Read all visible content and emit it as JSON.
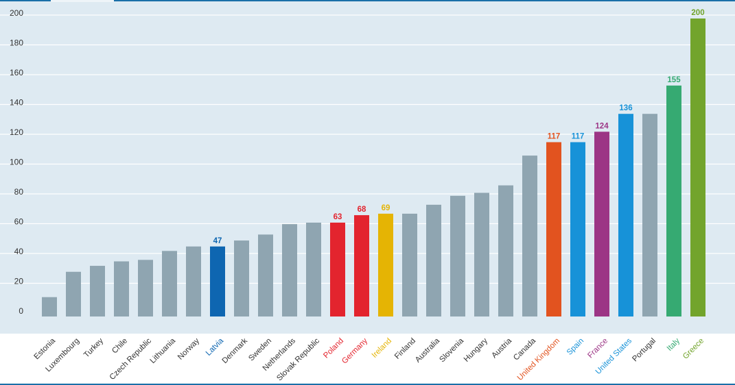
{
  "chart_data": {
    "type": "bar",
    "title": "",
    "xlabel": "",
    "ylabel": "",
    "ylim": [
      0,
      200
    ],
    "yticks": [
      0,
      20,
      40,
      60,
      80,
      100,
      120,
      140,
      160,
      180,
      200
    ],
    "yticks_labels": [
      "0",
      "20",
      "40",
      "60",
      "80",
      "100",
      "120",
      "140",
      "160",
      "180",
      "200"
    ],
    "grid": true,
    "categories": [
      "Estonia",
      "Luxembourg",
      "Turkey",
      "Chile",
      "Czech Republic",
      "Lithuania",
      "Norway",
      "Latvia",
      "Denmark",
      "Sweden",
      "Netherlands",
      "Slovak Republic",
      "Poland",
      "Germany",
      "Ireland",
      "Finland",
      "Australia",
      "Slovenia",
      "Hungary",
      "Austria",
      "Canada",
      "United Kingdom",
      "Spain",
      "France",
      "United States",
      "Portugal",
      "Italy",
      "Greece"
    ],
    "values": [
      13,
      30,
      34,
      37,
      38,
      44,
      47,
      47,
      51,
      55,
      62,
      63,
      63,
      68,
      69,
      69,
      75,
      81,
      83,
      88,
      108,
      117,
      117,
      124,
      136,
      136,
      155,
      200
    ],
    "data_labels": [
      "",
      "",
      "",
      "",
      "",
      "",
      "",
      "47",
      "",
      "",
      "",
      "",
      "63",
      "68",
      "69",
      "",
      "",
      "",
      "",
      "",
      "",
      "117",
      "117",
      "124",
      "136",
      "",
      "155",
      "200"
    ],
    "colors": {
      "default": "#8fa5b1",
      "Latvia": "#0e66b1",
      "Poland": "#e3242e",
      "Germany": "#e3242e",
      "Ireland": "#e5b404",
      "United Kingdom": "#e2531f",
      "Spain": "#1792d8",
      "France": "#9c3585",
      "United States": "#1792d8",
      "Italy": "#36aa72",
      "Greece": "#72a42c"
    },
    "background": "#deeaf2",
    "label_area_background": "#ffffff",
    "axis_text_color": "#333333"
  }
}
